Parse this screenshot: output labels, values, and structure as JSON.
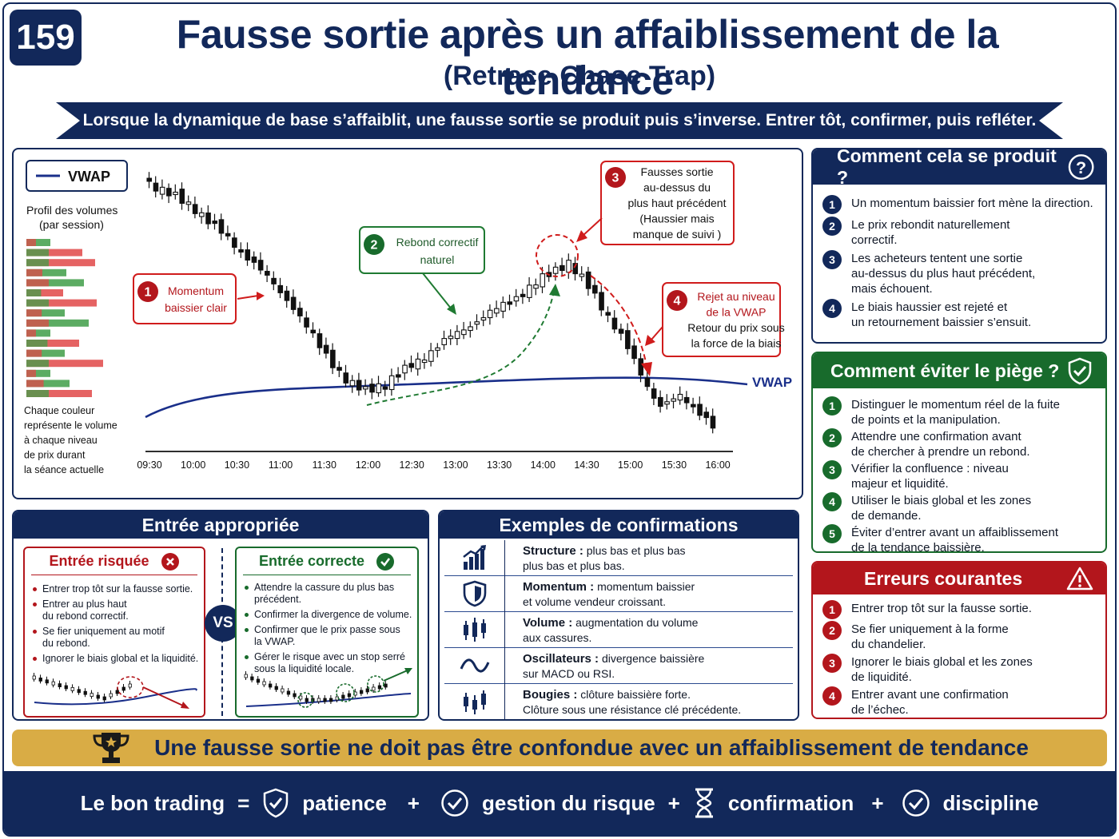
{
  "header": {
    "number": "159",
    "title": "Fausse sortie après un affaiblissement de la tendance",
    "subtitle": "(Retrace Chase Trap)",
    "banner": "Lorsque la dynamique de base s’affaiblit, une fausse sortie se produit puis s’inverse. Entrer tôt, confirmer, puis refléter."
  },
  "chart": {
    "legend_label": "VWAP",
    "vwap_label": "VWAP",
    "profile_title": "Profil des volumes",
    "profile_subtitle": "(par session)",
    "profile_note": [
      "Chaque couleur",
      "représente le volume",
      "à chaque niveau",
      "de prix durant",
      "la séance actuelle"
    ],
    "x_ticks": [
      "09:30",
      "10:00",
      "10:30",
      "11:00",
      "11:30",
      "12:00",
      "12:30",
      "13:00",
      "13:30",
      "14:00",
      "14:30",
      "15:00",
      "15:30",
      "16:00"
    ],
    "callouts": [
      {
        "n": "1",
        "lines": [
          "Momentum",
          "baissier clair"
        ]
      },
      {
        "n": "2",
        "lines": [
          "Rebond correctif",
          "naturel"
        ]
      },
      {
        "n": "3",
        "lines": [
          "Fausses sortie",
          "au-dessus du",
          "plus haut précédent",
          "(Haussier mais",
          "manque de suivi )"
        ]
      },
      {
        "n": "4",
        "lines": [
          "Rejet au niveau",
          "de la VWAP",
          "Retour du prix sous",
          "la force de la biais"
        ]
      }
    ],
    "colors": {
      "vwap": "#1a2f8a",
      "bull": "#ffffff",
      "bear": "#111111",
      "volume_green": "#3f9e48",
      "volume_red": "#e04848"
    }
  },
  "how": {
    "title": "Comment cela se produit ?",
    "items": [
      {
        "n": "1",
        "lines": [
          "Un momentum baissier fort mène la direction."
        ]
      },
      {
        "n": "2",
        "lines": [
          "Le prix rebondit naturellement",
          "correctif."
        ]
      },
      {
        "n": "3",
        "lines": [
          "Les acheteurs tentent une sortie",
          "au-dessus du plus haut précédent,",
          "mais échouent."
        ]
      },
      {
        "n": "4",
        "lines": [
          "Le biais haussier est rejeté et",
          "un retournement baissier s’ensuit."
        ]
      }
    ]
  },
  "avoid": {
    "title": "Comment éviter le piège ?",
    "items": [
      {
        "n": "1",
        "lines": [
          "Distinguer le momentum réel de la fuite",
          "de points et la manipulation."
        ]
      },
      {
        "n": "2",
        "lines": [
          "Attendre une confirmation avant",
          "de chercher à prendre un rebond."
        ]
      },
      {
        "n": "3",
        "lines": [
          "Vérifier la confluence : niveau",
          "majeur et liquidité."
        ]
      },
      {
        "n": "4",
        "lines": [
          "Utiliser le biais global et les zones",
          "de demande."
        ]
      },
      {
        "n": "5",
        "lines": [
          "Éviter d’entrer avant un affaiblissement",
          "de la tendance baissière."
        ]
      }
    ]
  },
  "errors": {
    "title": "Erreurs courantes",
    "items": [
      {
        "n": "1",
        "lines": [
          "Entrer trop tôt sur la fausse sortie."
        ]
      },
      {
        "n": "2",
        "lines": [
          "Se fier uniquement à la forme",
          "du chandelier."
        ]
      },
      {
        "n": "3",
        "lines": [
          "Ignorer le biais global et les zones",
          "de liquidité."
        ]
      },
      {
        "n": "4",
        "lines": [
          "Entrer avant une confirmation",
          "de l’échec."
        ]
      }
    ]
  },
  "entry": {
    "title": "Entrée appropriée",
    "vs": "VS",
    "risky": {
      "title": "Entrée risquée",
      "items": [
        [
          "Entrer trop tôt sur la fausse sortie."
        ],
        [
          "Entrer au plus haut",
          "du rebond correctif."
        ],
        [
          "Se fier uniquement au motif",
          "du rebond."
        ],
        [
          "Ignorer le biais global et la liquidité."
        ]
      ]
    },
    "correct": {
      "title": "Entrée correcte",
      "items": [
        [
          "Attendre la cassure du plus bas",
          "précédent."
        ],
        [
          "Confirmer la divergence de volume."
        ],
        [
          "Confirmer que le prix passe sous",
          "la VWAP."
        ],
        [
          "Gérer le risque avec un stop serré",
          "sous la liquidité locale."
        ]
      ]
    }
  },
  "examples": {
    "title": "Exemples de confirmations",
    "rows": [
      {
        "icon": "bar-chart-icon",
        "label": "Structure :",
        "text1": "plus bas et plus bas",
        "text2": "plus bas et plus bas."
      },
      {
        "icon": "shield-icon",
        "label": "Momentum :",
        "text1": "momentum baissier",
        "text2": "et volume vendeur croissant."
      },
      {
        "icon": "candles-icon",
        "label": "Volume :",
        "text1": "augmentation du volume",
        "text2": "aux cassures."
      },
      {
        "icon": "wave-icon",
        "label": "Oscillateurs :",
        "text1": "divergence baissière",
        "text2": "sur MACD ou RSI."
      },
      {
        "icon": "candlestick-icon",
        "label": "Bougies :",
        "text1": "clôture baissière forte.",
        "text2": "Clôture sous une résistance clé précédente."
      }
    ]
  },
  "gold_banner": "Une fausse sortie ne doit pas être confondue avec un affaiblissement de tendance",
  "footer": {
    "lead": "Le bon trading",
    "equals": "=",
    "plus": "+",
    "patience": "patience",
    "risk": "gestion du risque",
    "confirmation": "confirmation",
    "discipline": "discipline"
  }
}
